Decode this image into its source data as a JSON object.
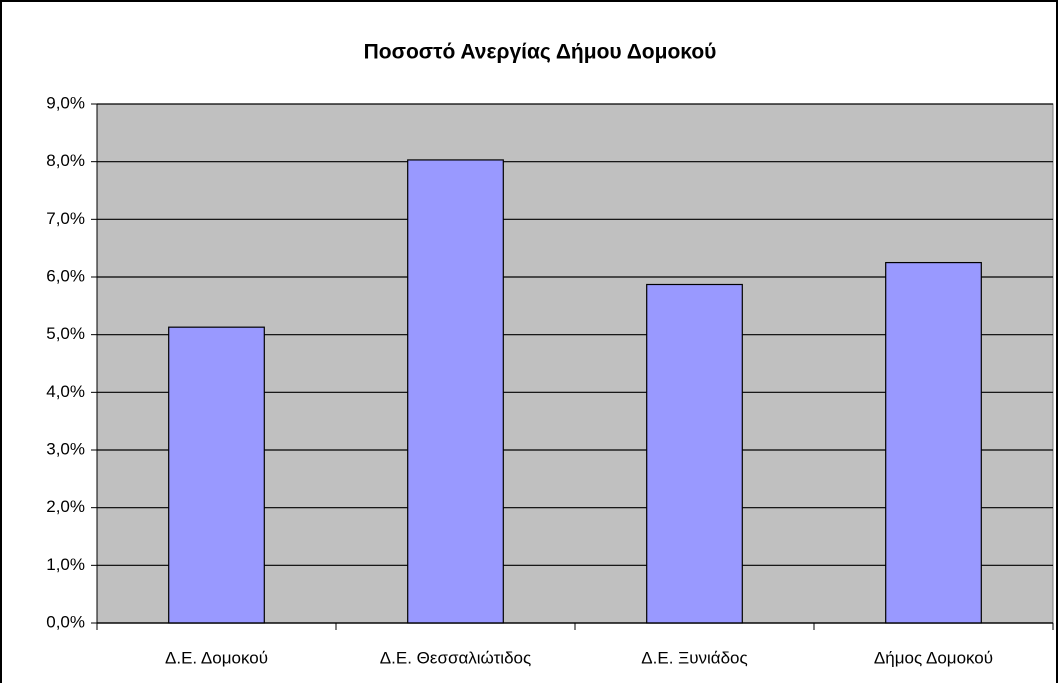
{
  "chart_data": {
    "type": "bar",
    "title": "Ποσοστό Ανεργίας Δήμου Δομοκού",
    "categories": [
      "Δ.Ε. Δομοκού",
      "Δ.Ε. Θεσσαλιώτιδος",
      "Δ.Ε. Ξυνιάδος",
      "Δήμος Δομοκού"
    ],
    "values": [
      5.13,
      8.03,
      5.87,
      6.25
    ],
    "color": "#9999ff",
    "ylim": [
      0,
      9
    ],
    "yticks": [
      {
        "value": 0,
        "label": "0,0%"
      },
      {
        "value": 1,
        "label": "1,0%"
      },
      {
        "value": 2,
        "label": "2,0%"
      },
      {
        "value": 3,
        "label": "3,0%"
      },
      {
        "value": 4,
        "label": "4,0%"
      },
      {
        "value": 5,
        "label": "5,0%"
      },
      {
        "value": 6,
        "label": "6,0%"
      },
      {
        "value": 7,
        "label": "7,0%"
      },
      {
        "value": 8,
        "label": "8,0%"
      },
      {
        "value": 9,
        "label": "9,0%"
      }
    ],
    "grid": true
  }
}
